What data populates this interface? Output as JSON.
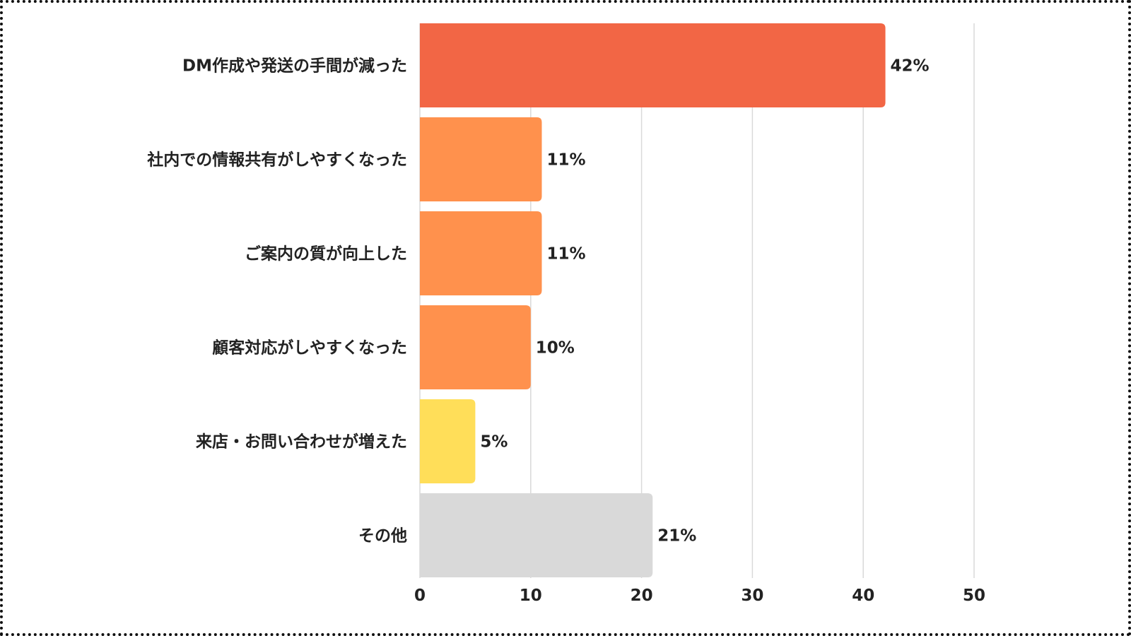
{
  "chart_data": {
    "type": "bar",
    "orientation": "horizontal",
    "title": "",
    "xlabel": "",
    "ylabel": "",
    "categories": [
      "DM作成や発送の手間が減った",
      "社内での情報共有がしやすくなった",
      "ご案内の質が向上した",
      "顧客対応がしやすくなった",
      "来店・お問い合わせが増えた",
      "その他"
    ],
    "values": [
      42,
      11,
      11,
      10,
      5,
      21
    ],
    "value_labels": [
      "42%",
      "11%",
      "11%",
      "10%",
      "5%",
      "21%"
    ],
    "bar_colors": [
      "#f26645",
      "#ff914d",
      "#ff914d",
      "#ff914d",
      "#ffde59",
      "#d9d9d9"
    ],
    "xlim": [
      0,
      50
    ],
    "xticks": [
      0,
      10,
      20,
      30,
      40,
      50
    ],
    "xtick_labels": [
      "0",
      "10",
      "20",
      "30",
      "40",
      "50"
    ],
    "grid": "vertical",
    "legend": "none"
  }
}
